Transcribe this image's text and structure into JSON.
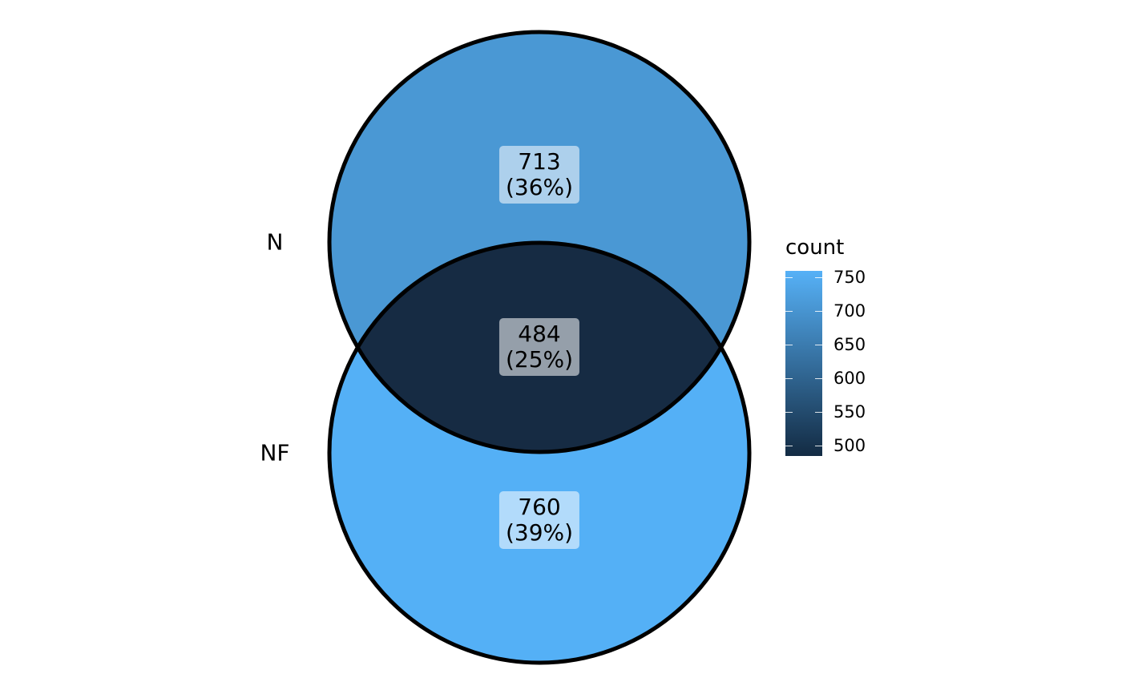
{
  "sets": [
    {
      "name": "N",
      "count": 713,
      "color": "#4a98d4"
    },
    {
      "name": "NF",
      "count": 760,
      "color": "#54b0f6"
    }
  ],
  "regions": {
    "n_only": {
      "count": "713",
      "percent": "(36%)",
      "fill": "#4a98d4"
    },
    "overlap": {
      "count": "484",
      "percent": "(25%)",
      "fill": "#162b43"
    },
    "nf_only": {
      "count": "760",
      "percent": "(39%)",
      "fill": "#54b0f6"
    }
  },
  "legend": {
    "title": "count",
    "ticks": [
      "750",
      "700",
      "650",
      "600",
      "550",
      "500"
    ],
    "tick_values": [
      750,
      700,
      650,
      600,
      550,
      500
    ],
    "range": [
      484,
      760
    ],
    "low_color": "#132b43",
    "high_color": "#56b1f7"
  }
}
